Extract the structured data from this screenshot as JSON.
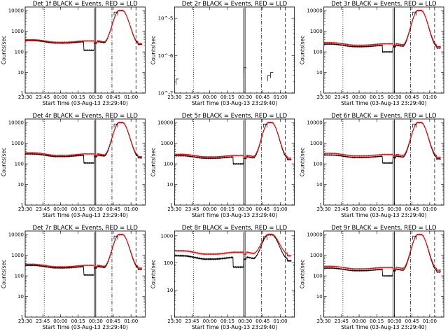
{
  "figure": {
    "background": "#ffffff",
    "colors": {
      "events": "#000000",
      "lld": "#ff0000",
      "marker": "#000000"
    },
    "time_ticks": [
      "23:30",
      "23:45",
      "00:00",
      "00:15",
      "00:30",
      "00:45",
      "01:00"
    ],
    "x_label": "Start Time (03-Aug-13 23:29:40)",
    "y_label": "Counts/sec"
  },
  "chart_data": [
    {
      "type": "line",
      "title": "Det 1f BLACK = Events, RED = LLD",
      "scale": "log",
      "ylim": [
        1,
        15000
      ],
      "y_ticks": [
        "1",
        "10",
        "100",
        "1000",
        "10000"
      ],
      "baseline": 330,
      "lld_level": 360,
      "peak": 10000,
      "dip": 120,
      "gaps": [
        0,
        1,
        3,
        3
      ]
    },
    {
      "type": "line",
      "title": "Det 2r BLACK = Events, RED = LLD",
      "scale": "log",
      "ylim": [
        1e-07,
        2e-05
      ],
      "y_ticks": [
        "10^-7",
        "10^-6",
        "10^-5"
      ],
      "baseline": null,
      "lld_level": null,
      "peak": null,
      "dip": null,
      "gaps": [
        0,
        1,
        3,
        3
      ]
    },
    {
      "type": "line",
      "title": "Det 3r BLACK = Events, RED = LLD",
      "scale": "log",
      "ylim": [
        1,
        15000
      ],
      "y_ticks": [
        "1",
        "10",
        "100",
        "1000",
        "10000"
      ],
      "baseline": 220,
      "lld_level": 260,
      "peak": 10000,
      "dip": 100,
      "gaps": [
        0,
        1,
        3,
        3
      ]
    },
    {
      "type": "line",
      "title": "Det 4r BLACK = Events, RED = LLD",
      "scale": "log",
      "ylim": [
        1,
        15000
      ],
      "y_ticks": [
        "1",
        "10",
        "100",
        "1000",
        "10000"
      ],
      "baseline": 280,
      "lld_level": 320,
      "peak": 10000,
      "dip": 110,
      "gaps": [
        0,
        1,
        3,
        3
      ]
    },
    {
      "type": "line",
      "title": "Det 5r BLACK = Events, RED = LLD",
      "scale": "log",
      "ylim": [
        1,
        15000
      ],
      "y_ticks": [
        "1",
        "10",
        "100",
        "1000",
        "10000"
      ],
      "baseline": 230,
      "lld_level": 270,
      "peak": 10000,
      "dip": 100,
      "gaps": [
        0,
        1,
        3,
        3
      ]
    },
    {
      "type": "line",
      "title": "Det 6r BLACK = Events, RED = LLD",
      "scale": "log",
      "ylim": [
        1,
        15000
      ],
      "y_ticks": [
        "1",
        "10",
        "100",
        "1000",
        "10000"
      ],
      "baseline": 250,
      "lld_level": 300,
      "peak": 10000,
      "dip": 110,
      "gaps": [
        0,
        1,
        3,
        3
      ]
    },
    {
      "type": "line",
      "title": "Det 7r BLACK = Events, RED = LLD",
      "scale": "log",
      "ylim": [
        1,
        15000
      ],
      "y_ticks": [
        "1",
        "10",
        "100",
        "1000",
        "10000"
      ],
      "baseline": 300,
      "lld_level": 340,
      "peak": 10000,
      "dip": 110,
      "gaps": [
        0,
        1,
        3,
        3
      ]
    },
    {
      "type": "line",
      "title": "Det 8r BLACK = Events, RED = LLD",
      "scale": "log",
      "ylim": [
        1,
        1500
      ],
      "y_ticks": [
        "1",
        "10",
        "100",
        "1000"
      ],
      "baseline": 170,
      "lld_level": 260,
      "peak": 1100,
      "dip": 70,
      "gaps": [
        0,
        1,
        3,
        3
      ]
    },
    {
      "type": "line",
      "title": "Det 9r BLACK = Events, RED = LLD",
      "scale": "log",
      "ylim": [
        1,
        15000
      ],
      "y_ticks": [
        "1",
        "10",
        "100",
        "1000",
        "10000"
      ],
      "baseline": 220,
      "lld_level": 270,
      "peak": 10000,
      "dip": 100,
      "gaps": [
        0,
        1,
        3,
        3
      ]
    }
  ]
}
